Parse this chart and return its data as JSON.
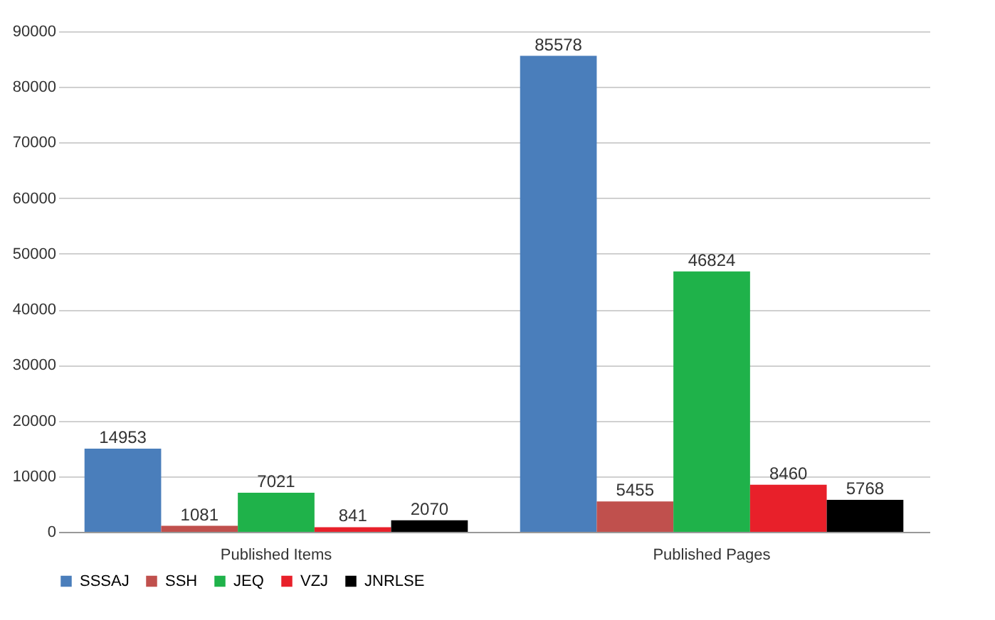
{
  "chart_data": {
    "type": "bar",
    "categories": [
      "Published Items",
      "Published Pages"
    ],
    "series": [
      {
        "name": "SSSAJ",
        "color": "#4a7ebb",
        "values": [
          14953,
          85578
        ]
      },
      {
        "name": "SSH",
        "color": "#c0504d",
        "values": [
          1081,
          5455
        ]
      },
      {
        "name": "JEQ",
        "color": "#1fb24a",
        "values": [
          7021,
          46824
        ]
      },
      {
        "name": "VZJ",
        "color": "#e8202a",
        "values": [
          841,
          8460
        ]
      },
      {
        "name": "JNRLSE",
        "color": "#000000",
        "values": [
          2070,
          5768
        ]
      }
    ],
    "ylim": [
      0,
      90000
    ],
    "yticks": [
      0,
      10000,
      20000,
      30000,
      40000,
      50000,
      60000,
      70000,
      80000,
      90000
    ],
    "grid": "y",
    "legend": "bottom",
    "data_labels": true
  }
}
